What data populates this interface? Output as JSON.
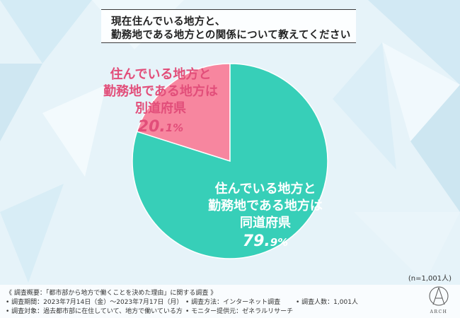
{
  "title": {
    "line1": "現在住んでいる地方と、",
    "line2": "勤務地である地方との関係について教えてください"
  },
  "colors": {
    "pink": "#f7869f",
    "teal": "#37cfb8",
    "pink_text": "#e24e7a"
  },
  "chart_data": {
    "type": "pie",
    "slices": [
      {
        "label": "住んでいる地方と勤務地である地方は別道府県",
        "value": 20.1,
        "color": "#f7869f"
      },
      {
        "label": "住んでいる地方と勤務地である地方は同道府県",
        "value": 79.9,
        "color": "#37cfb8"
      }
    ]
  },
  "labels": {
    "pink": {
      "l1": "住んでいる地方と",
      "l2": "勤務地である地方は",
      "l3": "別道府県",
      "pct_int": "20.",
      "pct_dec": "1%"
    },
    "teal": {
      "l1": "住んでいる地方と",
      "l2": "勤務地である地方は",
      "l3": "同道府県",
      "pct_int": "79.",
      "pct_dec": "9%"
    }
  },
  "sample": "(n=1,001人)",
  "footer": {
    "overview": "《 調査概要：「都市部から地方で働くことを決めた理由」に関する調査 》",
    "period": "• 調査期間：2023年7月14日（金）～2023年7月17日（月）",
    "method": "• 調査方法：インターネット調査",
    "count": "• 調査人数：1,001人",
    "target": "• 調査対象：過去都市部に在住していて、地方で働いている方",
    "provider": "• モニター提供元：ゼネラルリサーチ"
  },
  "logo": {
    "text": "ARCH"
  }
}
